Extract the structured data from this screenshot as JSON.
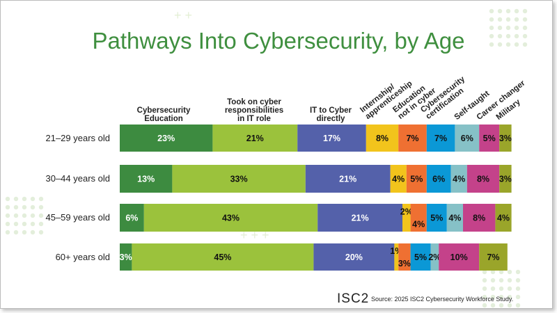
{
  "chart_data": {
    "type": "bar",
    "orientation": "horizontal",
    "stacked": true,
    "title": "Pathways Into Cybersecurity, by Age",
    "categories": [
      "21–29 years old",
      "30–44 years old",
      "45–59 years old",
      "60+ years old"
    ],
    "series": [
      {
        "name": "Cybersecurity Education",
        "color": "#3d8b40",
        "label_color": "#ffffff",
        "values": [
          23,
          13,
          6,
          3
        ]
      },
      {
        "name": "Took on cyber responsibilities in IT role",
        "color": "#9bc23c",
        "label_color": "#111111",
        "values": [
          21,
          33,
          43,
          45
        ]
      },
      {
        "name": "IT to Cyber directly",
        "color": "#5461aa",
        "label_color": "#ffffff",
        "values": [
          17,
          21,
          21,
          20
        ]
      },
      {
        "name": "Internship/ apprenticeship",
        "color": "#f2c41c",
        "label_color": "#111111",
        "values": [
          8,
          4,
          2,
          1
        ]
      },
      {
        "name": "Education not in cyber",
        "color": "#ef7032",
        "label_color": "#111111",
        "values": [
          7,
          5,
          4,
          3
        ]
      },
      {
        "name": "Cybersecurity certification",
        "color": "#0b98d6",
        "label_color": "#111111",
        "values": [
          7,
          6,
          5,
          5
        ]
      },
      {
        "name": "Self-taught",
        "color": "#86c1c7",
        "label_color": "#111111",
        "values": [
          6,
          4,
          4,
          2
        ]
      },
      {
        "name": "Career changer",
        "color": "#c4428a",
        "label_color": "#111111",
        "values": [
          5,
          8,
          8,
          10
        ]
      },
      {
        "name": "Military",
        "color": "#9aa52a",
        "label_color": "#111111",
        "values": [
          3,
          3,
          4,
          7
        ]
      }
    ],
    "value_suffix": "%",
    "legend_placement": "top (column headers)",
    "grid": false
  },
  "headers": {
    "h0": [
      "Cybersecurity",
      "Education"
    ],
    "h1": [
      "Took on cyber",
      "responsibilities",
      "in IT role"
    ],
    "h2": [
      "IT to Cyber",
      "directly"
    ],
    "h3": [
      "Internship/",
      "apprenticeship"
    ],
    "h4": [
      "Education",
      "not in cyber"
    ],
    "h5": [
      "Cybersecurity",
      "certification"
    ],
    "h6": "Self-taught",
    "h7": "Career changer",
    "h8": "Military"
  },
  "footer": {
    "logo": "ISC2",
    "source": "Source: 2025 ISC2 Cybersecurity Workforce Study."
  }
}
